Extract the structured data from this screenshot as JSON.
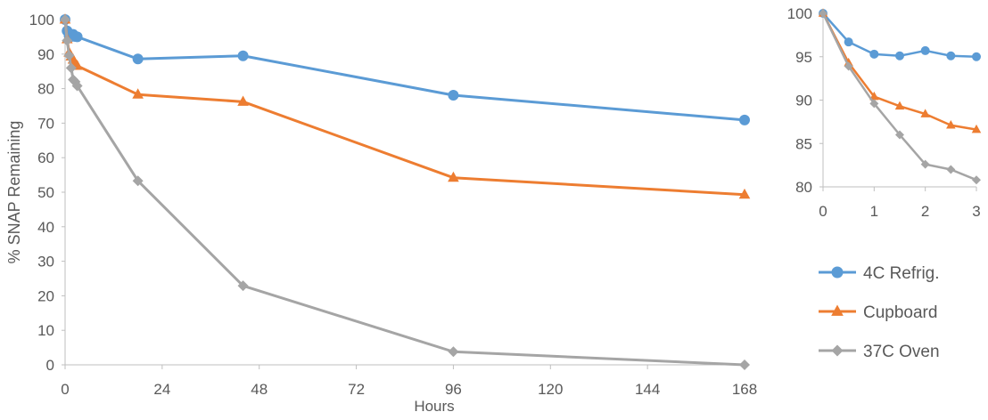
{
  "chart_data": [
    {
      "type": "line",
      "title": "",
      "xlabel": "Hours",
      "ylabel": "% SNAP Remaining",
      "xlim": [
        0,
        168
      ],
      "ylim": [
        0,
        100
      ],
      "xticks": [
        0,
        24,
        48,
        72,
        96,
        120,
        144,
        168
      ],
      "yticks": [
        0,
        10,
        20,
        30,
        40,
        50,
        60,
        70,
        80,
        90,
        100
      ],
      "grid": false,
      "series": [
        {
          "name": "4C Refrig.",
          "color": "#5B9BD5",
          "marker": "circle",
          "x": [
            0,
            0.5,
            1,
            1.5,
            2,
            2.5,
            3,
            18,
            44,
            96,
            168
          ],
          "y": [
            100,
            96.7,
            95.3,
            95.1,
            95.7,
            95.1,
            95.0,
            88.6,
            89.5,
            78.1,
            70.9
          ]
        },
        {
          "name": "Cupboard",
          "color": "#ED7D31",
          "marker": "triangle",
          "x": [
            0,
            0.5,
            1,
            1.5,
            2,
            2.5,
            3,
            18,
            44,
            96,
            168
          ],
          "y": [
            100,
            94.3,
            90.4,
            89.3,
            88.4,
            87.1,
            86.6,
            78.3,
            76.2,
            54.2,
            49.3
          ]
        },
        {
          "name": "37C Oven",
          "color": "#A5A5A5",
          "marker": "diamond",
          "x": [
            0,
            0.5,
            1,
            1.5,
            2,
            2.5,
            3,
            18,
            44,
            96,
            168
          ],
          "y": [
            100,
            93.9,
            89.6,
            86.0,
            82.6,
            82.0,
            80.8,
            53.3,
            22.9,
            3.8,
            0
          ]
        }
      ]
    },
    {
      "type": "line",
      "title": "",
      "xlabel": "",
      "ylabel": "",
      "xlim": [
        0,
        3
      ],
      "ylim": [
        80,
        100
      ],
      "xticks": [
        0,
        1,
        2,
        3
      ],
      "yticks": [
        80,
        85,
        90,
        95,
        100
      ],
      "grid": false,
      "series": [
        {
          "name": "4C Refrig.",
          "color": "#5B9BD5",
          "marker": "circle",
          "x": [
            0,
            0.5,
            1,
            1.5,
            2,
            2.5,
            3
          ],
          "y": [
            100,
            96.7,
            95.3,
            95.1,
            95.7,
            95.1,
            95.0
          ]
        },
        {
          "name": "Cupboard",
          "color": "#ED7D31",
          "marker": "triangle",
          "x": [
            0,
            0.5,
            1,
            1.5,
            2,
            2.5,
            3
          ],
          "y": [
            100,
            94.3,
            90.4,
            89.3,
            88.4,
            87.1,
            86.6
          ]
        },
        {
          "name": "37C Oven",
          "color": "#A5A5A5",
          "marker": "diamond",
          "x": [
            0,
            0.5,
            1,
            1.5,
            2,
            2.5,
            3
          ],
          "y": [
            100,
            93.9,
            89.6,
            86.0,
            82.6,
            82.0,
            80.8
          ]
        }
      ]
    }
  ],
  "legend": {
    "position": "right",
    "items": [
      {
        "label": "4C Refrig.",
        "color": "#5B9BD5",
        "marker": "circle"
      },
      {
        "label": "Cupboard",
        "color": "#ED7D31",
        "marker": "triangle"
      },
      {
        "label": "37C Oven",
        "color": "#A5A5A5",
        "marker": "diamond"
      }
    ]
  }
}
